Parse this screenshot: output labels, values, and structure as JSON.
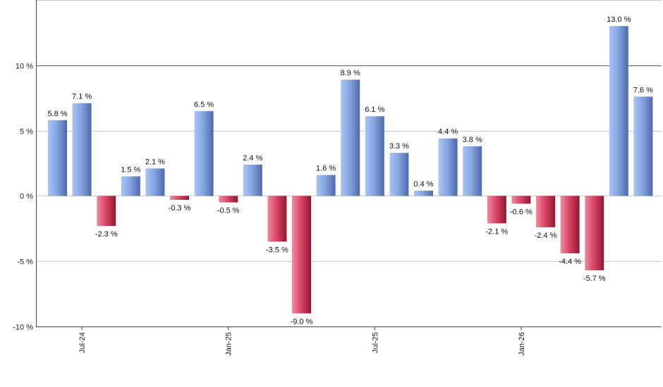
{
  "chart_data": {
    "type": "bar",
    "categories": [
      "",
      "Jul-24",
      "",
      "",
      "",
      "",
      "",
      "Jan-25",
      "",
      "",
      "",
      "",
      "",
      "Jul-25",
      "",
      "",
      "",
      "",
      "",
      "Jan-26",
      "",
      "",
      "",
      "",
      ""
    ],
    "values": [
      5.8,
      7.1,
      -2.3,
      1.5,
      2.1,
      -0.3,
      6.5,
      -0.5,
      2.4,
      -3.5,
      -9.0,
      1.6,
      8.9,
      6.1,
      3.3,
      0.4,
      4.4,
      3.8,
      -2.1,
      -0.6,
      -2.4,
      -4.4,
      -5.7,
      13.0,
      7.6
    ],
    "value_labels": [
      "5.8 %",
      "7.1 %",
      "-2.3 %",
      "1.5 %",
      "2.1 %",
      "-0.3 %",
      "6.5 %",
      "-0.5 %",
      "2.4 %",
      "-3.5 %",
      "-9.0 %",
      "1.6 %",
      "8.9 %",
      "6.1 %",
      "3.3 %",
      "0.4 %",
      "4.4 %",
      "3.8 %",
      "-2.1 %",
      "-0.6 %",
      "-2.4 %",
      "-4.4 %",
      "-5.7 %",
      "13.0 %",
      "7.6 %"
    ],
    "ylim": [
      -10,
      15
    ],
    "yticks": [
      -10,
      -5,
      0,
      5,
      10
    ],
    "ytick_labels": [
      "-10 %",
      "-5 %",
      "0 %",
      "5 %",
      "10 %"
    ],
    "reference_line": 10,
    "grid": true,
    "colors": {
      "positive": "#7c9fdc",
      "negative": "#c8324e",
      "reference_line": "#2e7d32",
      "grid": "#c8c8c8"
    }
  }
}
